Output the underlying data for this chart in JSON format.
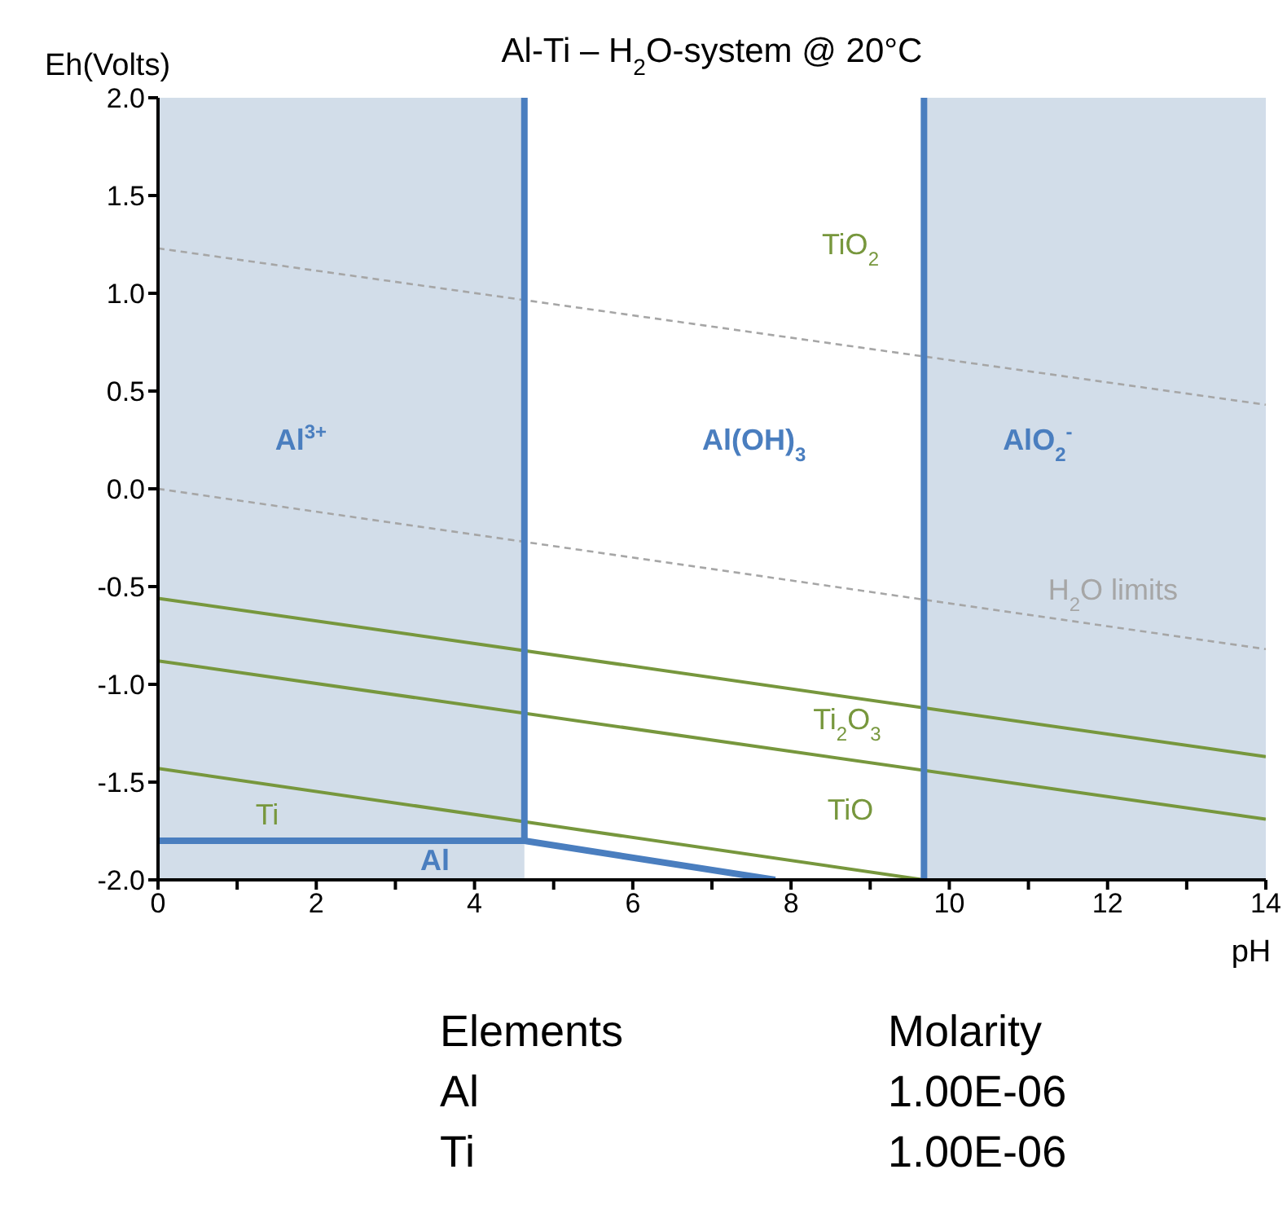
{
  "chart_data": {
    "type": "line",
    "title": "Al-Ti – H$_{2}$O-system @ 20°C",
    "xlabel": "pH",
    "ylabel": "Eh(Volts)",
    "xlim": [
      0,
      14
    ],
    "ylim": [
      -2,
      2
    ],
    "xticks": [
      0,
      {
        "value": 1,
        "label": null
      },
      2,
      {
        "value": 3,
        "label": null
      },
      4,
      {
        "value": 5,
        "label": null
      },
      6,
      {
        "value": 7,
        "label": null
      },
      8,
      {
        "value": 9,
        "label": null
      },
      10,
      {
        "value": 11,
        "label": null
      },
      12,
      {
        "value": 13,
        "label": null
      },
      14
    ],
    "yticks": [
      {
        "value": -2,
        "label": "-2.0"
      },
      {
        "value": -1.5,
        "label": "-1.5"
      },
      {
        "value": -1,
        "label": "-1.0"
      },
      {
        "value": -0.5,
        "label": "-0.5"
      },
      {
        "value": 0,
        "label": "0.0"
      },
      {
        "value": 0.5,
        "label": "0.5"
      },
      {
        "value": 1,
        "label": "1.0"
      },
      {
        "value": 1.5,
        "label": "1.5"
      },
      {
        "value": 2,
        "label": "2.0"
      }
    ],
    "grid": false,
    "legend": false,
    "marker": "none",
    "bands": [
      {
        "axis": "x",
        "from": 0,
        "to": 4.63,
        "color": "#d2dde9"
      },
      {
        "axis": "x",
        "from": 9.68,
        "to": 14,
        "color": "#d2dde9"
      }
    ],
    "series": [
      {
        "color": "#a6a6a6",
        "line_style": "dashed",
        "x": [
          0,
          14
        ],
        "values": [
          1.23,
          0.43
        ]
      },
      {
        "color": "#a6a6a6",
        "line_style": "dashed",
        "x": [
          0,
          14
        ],
        "values": [
          0,
          -0.82
        ]
      },
      {
        "color": "#77973d",
        "line_style": "solid",
        "x": [
          0,
          14
        ],
        "values": [
          -0.56,
          -1.37
        ]
      },
      {
        "color": "#77973d",
        "line_style": "solid",
        "x": [
          0,
          14
        ],
        "values": [
          -0.88,
          -1.69
        ]
      },
      {
        "color": "#77973d",
        "line_style": "solid",
        "x": [
          0,
          9.68
        ],
        "values": [
          -1.43,
          -2
        ]
      },
      {
        "color": "#4a7ebf",
        "line_style": "solid",
        "x": [
          4.63,
          4.63
        ],
        "values": [
          2,
          -1.8
        ]
      },
      {
        "color": "#4a7ebf",
        "line_style": "solid",
        "x": [
          9.68,
          9.68
        ],
        "values": [
          2,
          -2
        ]
      },
      {
        "color": "#4a7ebf",
        "line_style": "solid",
        "x": [
          0,
          4.63,
          7.8
        ],
        "values": [
          -1.8,
          -1.8,
          -2
        ]
      }
    ],
    "annotations": [
      "Al$^{3+}$",
      "Al(OH)$_{3}$",
      "AlO$_{2}$$^{-}$",
      "TiO$_{2}$",
      "H$_{2}$O limits",
      "Ti$_{2}$O$_{3}$",
      "TiO",
      "Ti",
      "Al",
      "Elements",
      "Molarity",
      "Al",
      "1.00E-06",
      "Ti",
      "1.00E-06"
    ]
  }
}
